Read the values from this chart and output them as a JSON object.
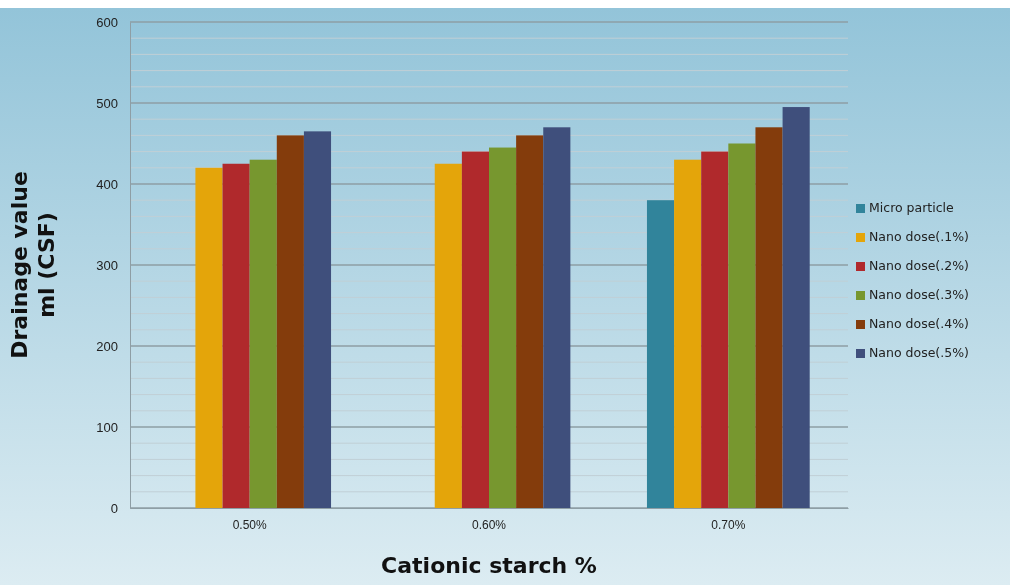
{
  "chart_data": {
    "type": "bar",
    "xlabel": "Cationic starch %",
    "ylabel": "Drainage value\nml (CSF)",
    "categories": [
      "0.50%",
      "0.60%",
      "0.70%"
    ],
    "series": [
      {
        "name": "Micro particle",
        "color": "#31849b",
        "values": [
          null,
          null,
          380
        ]
      },
      {
        "name": "Nano dose(.1%)",
        "color": "#e4a50a",
        "values": [
          420,
          425,
          430
        ]
      },
      {
        "name": "Nano dose(.2%)",
        "color": "#b0292c",
        "values": [
          425,
          440,
          440
        ]
      },
      {
        "name": "Nano dose(.3%)",
        "color": "#77972f",
        "values": [
          430,
          445,
          450
        ]
      },
      {
        "name": "Nano dose(.4%)",
        "color": "#843c0c",
        "values": [
          460,
          460,
          470
        ]
      },
      {
        "name": "Nano dose(.5%)",
        "color": "#3f4f7c",
        "values": [
          465,
          470,
          495
        ]
      }
    ],
    "ylim": [
      0,
      600
    ],
    "yticks": [
      0,
      {
        "value": 20,
        "label": null
      },
      {
        "value": 40,
        "label": null
      },
      {
        "value": 60,
        "label": null
      },
      {
        "value": 80,
        "label": null
      },
      100,
      {
        "value": 120,
        "label": null
      },
      {
        "value": 140,
        "label": null
      },
      {
        "value": 160,
        "label": null
      },
      {
        "value": 180,
        "label": null
      },
      200,
      {
        "value": 220,
        "label": null
      },
      {
        "value": 240,
        "label": null
      },
      {
        "value": 260,
        "label": null
      },
      {
        "value": 280,
        "label": null
      },
      300,
      {
        "value": 320,
        "label": null
      },
      {
        "value": 340,
        "label": null
      },
      {
        "value": 360,
        "label": null
      },
      {
        "value": 380,
        "label": null
      },
      400,
      {
        "value": 420,
        "label": null
      },
      {
        "value": 440,
        "label": null
      },
      {
        "value": 460,
        "label": null
      },
      {
        "value": 480,
        "label": null
      },
      500,
      {
        "value": 520,
        "label": null
      },
      {
        "value": 540,
        "label": null
      },
      {
        "value": 560,
        "label": null
      },
      {
        "value": 580,
        "label": null
      },
      600
    ],
    "grid": true,
    "legend": "right"
  }
}
